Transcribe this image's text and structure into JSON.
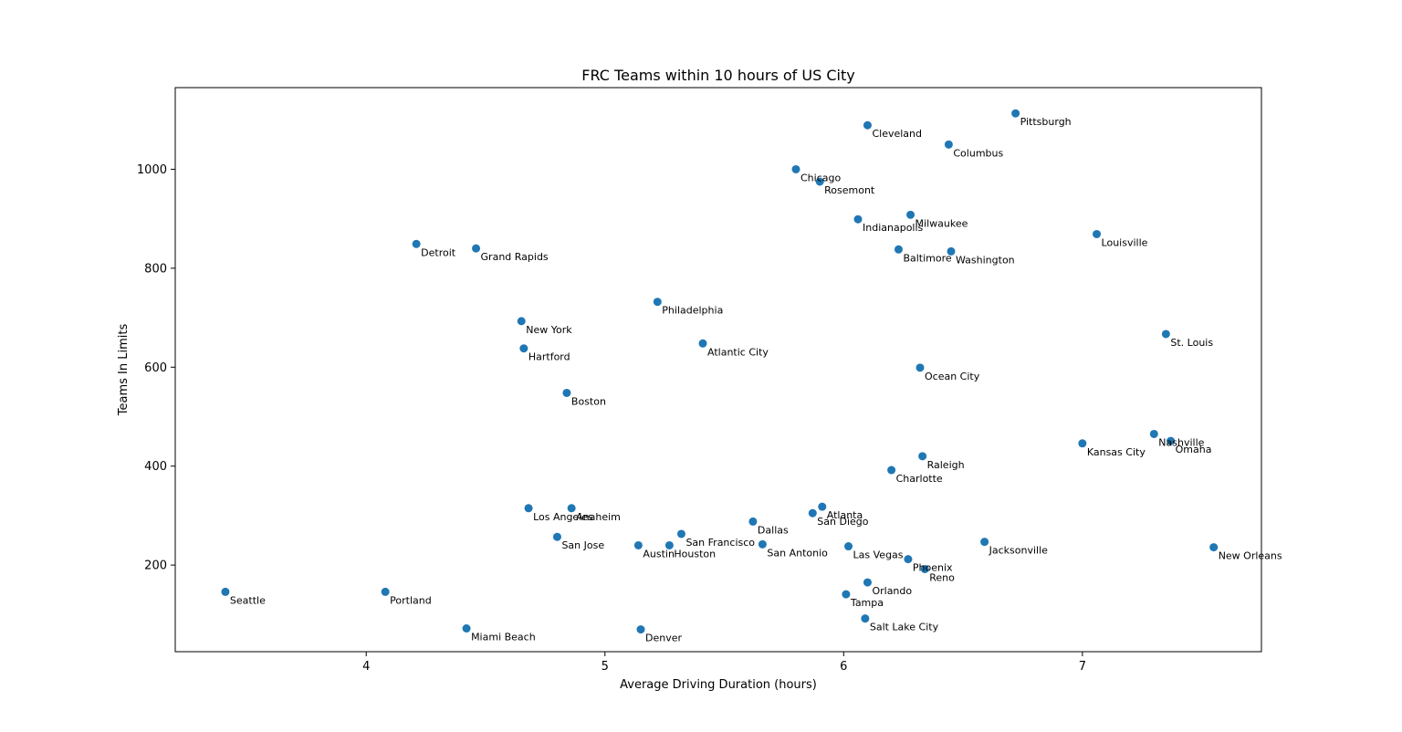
{
  "chart_data": {
    "type": "scatter",
    "title": "FRC Teams within 10 hours of US City",
    "xlabel": "Average Driving Duration (hours)",
    "ylabel": "Teams In Limits",
    "xlim": [
      3.2,
      7.75
    ],
    "ylim": [
      25,
      1165
    ],
    "xticks": [
      4,
      5,
      6,
      7
    ],
    "yticks": [
      200,
      400,
      600,
      800,
      1000
    ],
    "grid": false,
    "marker_color": "#1f77b4",
    "points": [
      {
        "label": "Pittsburgh",
        "x": 6.72,
        "y": 1113
      },
      {
        "label": "Cleveland",
        "x": 6.1,
        "y": 1089
      },
      {
        "label": "Columbus",
        "x": 6.44,
        "y": 1050
      },
      {
        "label": "Chicago",
        "x": 5.8,
        "y": 1000
      },
      {
        "label": "Rosemont",
        "x": 5.9,
        "y": 975
      },
      {
        "label": "Milwaukee",
        "x": 6.28,
        "y": 908
      },
      {
        "label": "Indianapolis",
        "x": 6.06,
        "y": 899
      },
      {
        "label": "Louisville",
        "x": 7.06,
        "y": 869
      },
      {
        "label": "Detroit",
        "x": 4.21,
        "y": 849
      },
      {
        "label": "Grand Rapids",
        "x": 4.46,
        "y": 840
      },
      {
        "label": "Baltimore",
        "x": 6.23,
        "y": 838
      },
      {
        "label": "Washington",
        "x": 6.45,
        "y": 834
      },
      {
        "label": "Philadelphia",
        "x": 5.22,
        "y": 732
      },
      {
        "label": "New York",
        "x": 4.65,
        "y": 693
      },
      {
        "label": "St. Louis",
        "x": 7.35,
        "y": 667
      },
      {
        "label": "Atlantic City",
        "x": 5.41,
        "y": 648
      },
      {
        "label": "Hartford",
        "x": 4.66,
        "y": 638
      },
      {
        "label": "Ocean City",
        "x": 6.32,
        "y": 599
      },
      {
        "label": "Boston",
        "x": 4.84,
        "y": 548
      },
      {
        "label": "Nashville",
        "x": 7.3,
        "y": 465
      },
      {
        "label": "Omaha",
        "x": 7.37,
        "y": 451
      },
      {
        "label": "Kansas City",
        "x": 7.0,
        "y": 446
      },
      {
        "label": "Raleigh",
        "x": 6.33,
        "y": 420
      },
      {
        "label": "Charlotte",
        "x": 6.2,
        "y": 392
      },
      {
        "label": "Atlanta",
        "x": 5.91,
        "y": 318
      },
      {
        "label": "Los Angeles",
        "x": 4.68,
        "y": 315
      },
      {
        "label": "Anaheim",
        "x": 4.86,
        "y": 315
      },
      {
        "label": "San Diego",
        "x": 5.87,
        "y": 305
      },
      {
        "label": "Dallas",
        "x": 5.62,
        "y": 288
      },
      {
        "label": "San Francisco",
        "x": 5.32,
        "y": 263
      },
      {
        "label": "San Jose",
        "x": 4.8,
        "y": 257
      },
      {
        "label": "Jacksonville",
        "x": 6.59,
        "y": 247
      },
      {
        "label": "San Antonio",
        "x": 5.66,
        "y": 242
      },
      {
        "label": "Austin",
        "x": 5.14,
        "y": 240
      },
      {
        "label": "Houston",
        "x": 5.27,
        "y": 240
      },
      {
        "label": "Las Vegas",
        "x": 6.02,
        "y": 238
      },
      {
        "label": "New Orleans",
        "x": 7.55,
        "y": 236
      },
      {
        "label": "Phoenix",
        "x": 6.27,
        "y": 212
      },
      {
        "label": "Reno",
        "x": 6.34,
        "y": 192
      },
      {
        "label": "Orlando",
        "x": 6.1,
        "y": 165
      },
      {
        "label": "Seattle",
        "x": 3.41,
        "y": 146
      },
      {
        "label": "Portland",
        "x": 4.08,
        "y": 146
      },
      {
        "label": "Tampa",
        "x": 6.01,
        "y": 141
      },
      {
        "label": "Salt Lake City",
        "x": 6.09,
        "y": 92
      },
      {
        "label": "Miami Beach",
        "x": 4.42,
        "y": 72
      },
      {
        "label": "Denver",
        "x": 5.15,
        "y": 70
      }
    ]
  }
}
